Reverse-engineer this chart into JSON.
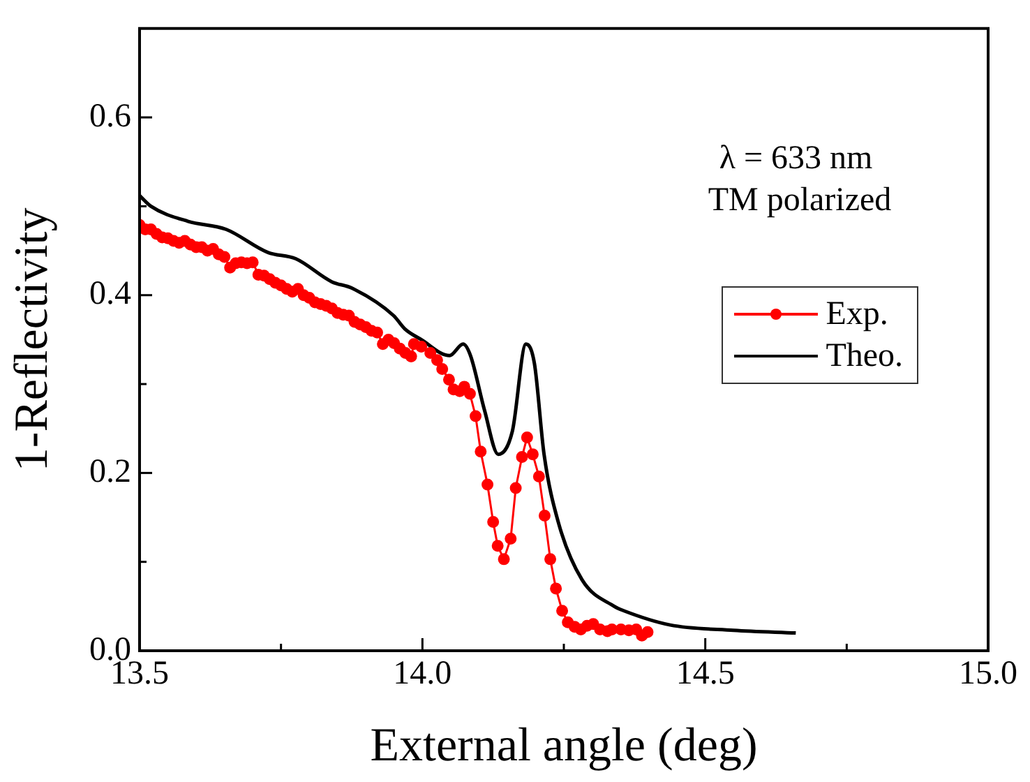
{
  "chart_data": {
    "type": "line",
    "xlabel": "External angle (deg)",
    "ylabel": "1-Reflectivity",
    "annotations": [
      "λ = 633 nm",
      "TM polarized"
    ],
    "xlim": [
      13.5,
      15.0
    ],
    "ylim": [
      0,
      0.7
    ],
    "xticks": [
      {
        "value": 13.5,
        "label": "13.5"
      },
      {
        "value": 13.75,
        "label": null
      },
      {
        "value": 14,
        "label": "14.0"
      },
      {
        "value": 14.25,
        "label": null
      },
      {
        "value": 14.5,
        "label": "14.5"
      },
      {
        "value": 14.75,
        "label": null
      },
      {
        "value": 15,
        "label": "15.0"
      }
    ],
    "yticks": [
      {
        "value": 0,
        "label": "0.0"
      },
      {
        "value": 0.1,
        "label": null
      },
      {
        "value": 0.2,
        "label": "0.2"
      },
      {
        "value": 0.3,
        "label": null
      },
      {
        "value": 0.4,
        "label": "0.4"
      },
      {
        "value": 0.5,
        "label": null
      },
      {
        "value": 0.6,
        "label": "0.6"
      }
    ],
    "grid": false,
    "legend": "right",
    "series": [
      {
        "name": "Exp.",
        "color": "#ff0000",
        "marker": "circle",
        "x": [
          13.5,
          13.51,
          13.52,
          13.53,
          13.54,
          13.55,
          13.56,
          13.57,
          13.58,
          13.59,
          13.6,
          13.61,
          13.62,
          13.63,
          13.64,
          13.65,
          13.66,
          13.67,
          13.68,
          13.69,
          13.7,
          13.71,
          13.72,
          13.73,
          13.74,
          13.75,
          13.76,
          13.77,
          13.78,
          13.79,
          13.8,
          13.81,
          13.82,
          13.83,
          13.84,
          13.85,
          13.86,
          13.87,
          13.88,
          13.89,
          13.9,
          13.91,
          13.92,
          13.93,
          13.94,
          13.95,
          13.96,
          13.97,
          13.98,
          13.985,
          13.998,
          14.014,
          14.026,
          14.035,
          14.047,
          14.055,
          14.066,
          14.074,
          14.084,
          14.094,
          14.103,
          14.115,
          14.125,
          14.133,
          14.144,
          14.156,
          14.165,
          14.176,
          14.185,
          14.195,
          14.206,
          14.216,
          14.226,
          14.236,
          14.247,
          14.257,
          14.269,
          14.28,
          14.291,
          14.302,
          14.314,
          14.327,
          14.335,
          14.351,
          14.365,
          14.378,
          14.388,
          14.398
        ],
        "values": [
          0.479,
          0.474,
          0.474,
          0.469,
          0.465,
          0.464,
          0.461,
          0.459,
          0.461,
          0.457,
          0.454,
          0.454,
          0.45,
          0.452,
          0.446,
          0.443,
          0.431,
          0.436,
          0.437,
          0.436,
          0.437,
          0.423,
          0.422,
          0.418,
          0.414,
          0.411,
          0.407,
          0.404,
          0.407,
          0.4,
          0.397,
          0.392,
          0.39,
          0.388,
          0.385,
          0.38,
          0.378,
          0.377,
          0.37,
          0.367,
          0.364,
          0.36,
          0.358,
          0.345,
          0.35,
          0.346,
          0.34,
          0.335,
          0.331,
          0.345,
          0.342,
          0.335,
          0.327,
          0.317,
          0.305,
          0.294,
          0.292,
          0.297,
          0.289,
          0.264,
          0.224,
          0.187,
          0.145,
          0.118,
          0.103,
          0.126,
          0.183,
          0.218,
          0.24,
          0.221,
          0.196,
          0.152,
          0.103,
          0.07,
          0.045,
          0.032,
          0.027,
          0.024,
          0.028,
          0.03,
          0.024,
          0.022,
          0.024,
          0.024,
          0.023,
          0.024,
          0.017,
          0.021
        ]
      },
      {
        "name": "Theo.",
        "color": "#000000",
        "marker": "none",
        "x": [
          13.5,
          13.52,
          13.586,
          13.653,
          13.727,
          13.776,
          13.84,
          13.875,
          13.949,
          13.969,
          13.998,
          14.048,
          14.072,
          14.085,
          14.11,
          14.134,
          14.159,
          14.183,
          14.198,
          14.215,
          14.24,
          14.282,
          14.339,
          14.356,
          14.438,
          14.55,
          14.66
        ],
        "values": [
          0.512,
          0.5,
          0.483,
          0.474,
          0.448,
          0.441,
          0.415,
          0.408,
          0.377,
          0.362,
          0.35,
          0.332,
          0.345,
          0.332,
          0.27,
          0.221,
          0.247,
          0.345,
          0.323,
          0.221,
          0.145,
          0.08,
          0.05,
          0.045,
          0.029,
          0.023,
          0.02
        ]
      }
    ]
  }
}
